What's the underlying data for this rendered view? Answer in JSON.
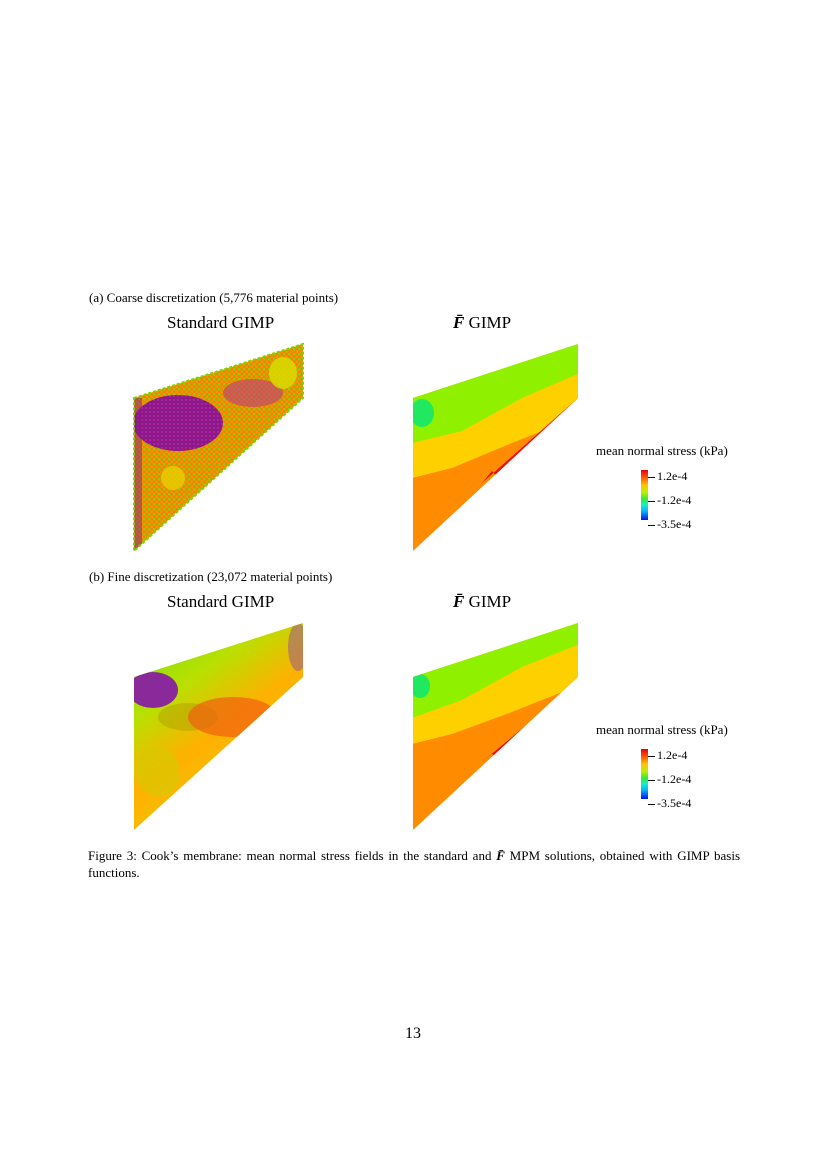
{
  "rows": [
    {
      "subcaption": "(a) Coarse discretization (5,776 material points)",
      "left_title": "Standard GIMP",
      "right_title_symbol": "F̄",
      "right_title_text": " GIMP"
    },
    {
      "subcaption": "(b) Fine discretization (23,072 material points)",
      "left_title": "Standard GIMP",
      "right_title_symbol": "F̄",
      "right_title_text": " GIMP"
    }
  ],
  "legend": {
    "title": "mean normal stress (kPa)",
    "ticks": [
      "1.2e-4",
      "-1.2e-4",
      "-3.5e-4"
    ],
    "colors": [
      "#e8000b",
      "#ff8c00",
      "#ffd000",
      "#8ff000",
      "#20e860",
      "#10e0e0",
      "#0a60ff",
      "#0014e8"
    ]
  },
  "caption": {
    "prefix": "Figure 3: Cook’s membrane: mean normal stress fields in the standard and ",
    "symbol": "F̄",
    "suffix": " MPM solutions, obtained with GIMP basis functions."
  },
  "page_number": "13"
}
